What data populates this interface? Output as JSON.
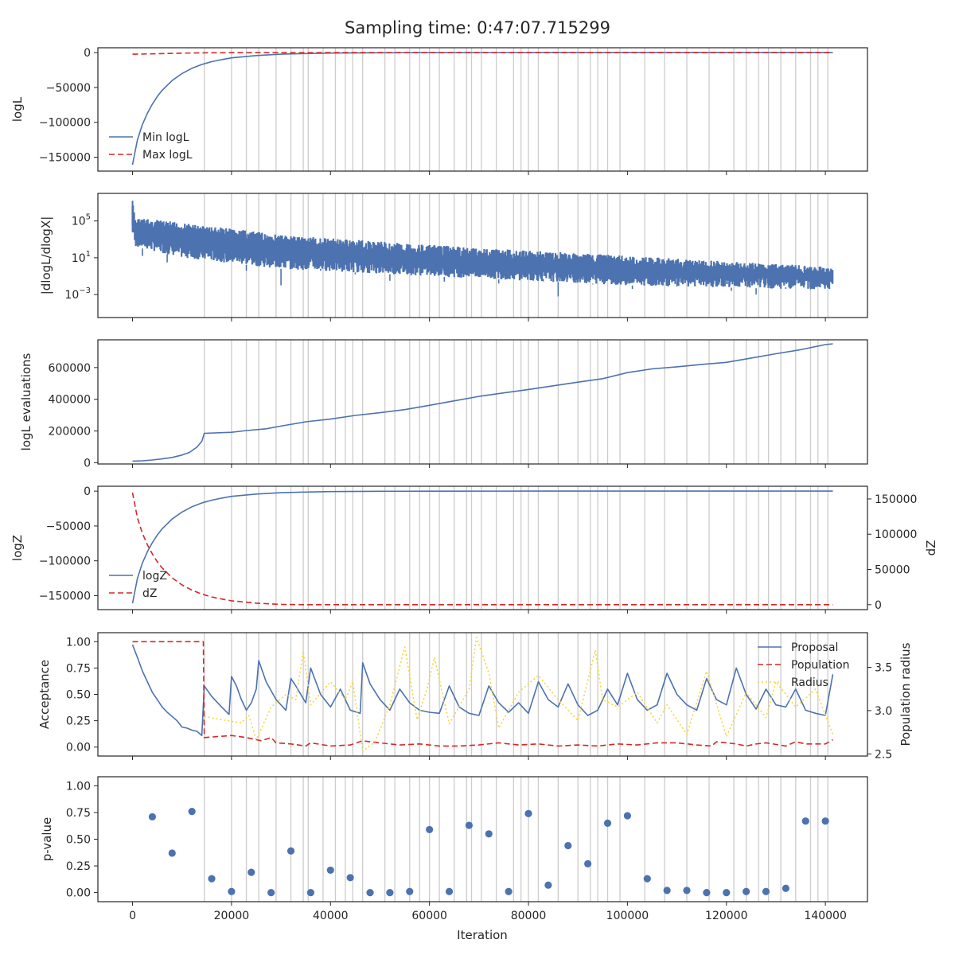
{
  "figure": {
    "title": "Sampling time: 0:47:07.715299",
    "xlabel": "Iteration"
  },
  "colors": {
    "blue": "#4c72b0",
    "red": "#d62728",
    "yellow": "#f5d63a",
    "grid": "#cccccc",
    "axis": "#262626"
  },
  "chart_data": [
    {
      "type": "line",
      "id": "logl",
      "ylabel": "logL",
      "xlim": [
        -7000,
        148500
      ],
      "ylim": [
        -170000,
        7000
      ],
      "yticks": [
        0,
        -50000,
        -100000,
        -150000
      ],
      "ytick_labels": [
        "0",
        "−50000",
        "−100000",
        "−150000"
      ],
      "legend_position": "lower-left",
      "series": [
        {
          "name": "Min logL",
          "style": "solid",
          "color": "#4c72b0",
          "x": [
            0,
            1000,
            2000,
            3000,
            4000,
            5000,
            6000,
            8000,
            10000,
            12000,
            14000,
            16000,
            18000,
            20000,
            25000,
            30000,
            35000,
            40000,
            50000,
            60000,
            80000,
            100000,
            141500
          ],
          "y": [
            -161000,
            -125000,
            -103000,
            -87000,
            -74000,
            -63000,
            -54000,
            -40000,
            -30000,
            -22500,
            -17000,
            -13000,
            -10000,
            -7500,
            -4200,
            -2300,
            -1300,
            -700,
            -220,
            -70,
            -10,
            -2,
            0
          ]
        },
        {
          "name": "Max logL",
          "style": "dashed",
          "color": "#d62728",
          "x": [
            0,
            5000,
            10000,
            14000,
            20000,
            40000,
            80000,
            141500
          ],
          "y": [
            -2200,
            -1600,
            -800,
            -300,
            -100,
            0,
            0,
            0
          ]
        }
      ]
    },
    {
      "type": "line",
      "id": "dlogl",
      "ylabel": "|dlogL/dlogX|",
      "yscale": "log",
      "xlim": [
        -7000,
        148500
      ],
      "ylim_log10": [
        -5.5,
        8.0
      ],
      "yticks_log10": [
        5,
        1,
        -3
      ],
      "ytick_labels": [
        {
          "base": "10",
          "exp": "5"
        },
        {
          "base": "10",
          "exp": "1"
        },
        {
          "base": "10",
          "exp": "−3"
        }
      ],
      "series": [
        {
          "name": "",
          "style": "noisy-band",
          "color": "#4c72b0",
          "x": [
            0,
            500,
            10000,
            30000,
            60000,
            100000,
            141500
          ],
          "upper_log10": [
            7.2,
            5.4,
            4.8,
            3.5,
            2.4,
            1.2,
            0.0
          ],
          "lower_log10": [
            3.8,
            2.2,
            1.0,
            -0.2,
            -1.0,
            -2.0,
            -2.5
          ],
          "dips": [
            [
              2000,
              1.2
            ],
            [
              7000,
              0.5
            ],
            [
              15000,
              0.7
            ],
            [
              23000,
              -0.4
            ],
            [
              30000,
              -2.0
            ],
            [
              38000,
              -0.2
            ],
            [
              45000,
              -0.8
            ],
            [
              52000,
              -1.5
            ],
            [
              63000,
              -1.6
            ],
            [
              68000,
              -1.2
            ],
            [
              74000,
              -1.8
            ],
            [
              83000,
              -1.3
            ],
            [
              86000,
              -3.2
            ],
            [
              93000,
              -1.9
            ],
            [
              101000,
              -2.4
            ],
            [
              110000,
              -1.7
            ],
            [
              121000,
              -2.6
            ],
            [
              126000,
              -3.0
            ],
            [
              132000,
              -2.2
            ],
            [
              137000,
              -2.3
            ]
          ]
        }
      ]
    },
    {
      "type": "line",
      "id": "evals",
      "ylabel": "logL evaluations",
      "xlim": [
        -7000,
        148500
      ],
      "ylim": [
        -8000,
        775000
      ],
      "yticks": [
        0,
        200000,
        400000,
        600000
      ],
      "ytick_labels": [
        "0",
        "200000",
        "400000",
        "600000"
      ],
      "series": [
        {
          "name": "",
          "style": "solid",
          "color": "#4c72b0",
          "x": [
            0,
            2000,
            4000,
            6000,
            8000,
            10000,
            11500,
            13000,
            14000,
            14500,
            20000,
            23000,
            27000,
            30000,
            35000,
            40000,
            45000,
            50000,
            55000,
            60000,
            65000,
            70000,
            75000,
            80000,
            85000,
            90000,
            95000,
            100000,
            105000,
            110000,
            115000,
            120000,
            125000,
            130000,
            135000,
            140000,
            141500
          ],
          "y": [
            10000,
            12000,
            17000,
            24000,
            33000,
            48000,
            65000,
            98000,
            135000,
            185000,
            192000,
            203000,
            214000,
            231000,
            258000,
            275000,
            298000,
            315000,
            335000,
            362000,
            390000,
            418000,
            440000,
            462000,
            485000,
            508000,
            530000,
            568000,
            592000,
            605000,
            620000,
            633000,
            660000,
            687000,
            713000,
            745000,
            750000
          ]
        }
      ]
    },
    {
      "type": "line",
      "id": "logz",
      "ylabel": "logZ",
      "ylabel_right": "dZ",
      "xlim": [
        -7000,
        148500
      ],
      "ylim": [
        -170000,
        7000
      ],
      "ylim_right": [
        -7000,
        168000
      ],
      "yticks": [
        0,
        -50000,
        -100000,
        -150000
      ],
      "ytick_labels": [
        "0",
        "−50000",
        "−100000",
        "−150000"
      ],
      "yticks_right": [
        0,
        50000,
        100000,
        150000
      ],
      "ytick_labels_right": [
        "0",
        "50000",
        "100000",
        "150000"
      ],
      "legend_position": "lower-left",
      "series": [
        {
          "name": "logZ",
          "style": "solid",
          "color": "#4c72b0",
          "axis": "left",
          "x": [
            0,
            1000,
            2000,
            3000,
            4000,
            5000,
            6000,
            8000,
            10000,
            12000,
            14000,
            16000,
            18000,
            20000,
            25000,
            30000,
            35000,
            40000,
            50000,
            60000,
            80000,
            100000,
            141500
          ],
          "y": [
            -161000,
            -125000,
            -103000,
            -87000,
            -74000,
            -63000,
            -54000,
            -40000,
            -30000,
            -22500,
            -17000,
            -13000,
            -10000,
            -7500,
            -4200,
            -2300,
            -1300,
            -700,
            -220,
            -70,
            -10,
            -2,
            0
          ]
        },
        {
          "name": "dZ",
          "style": "dashed",
          "color": "#d62728",
          "axis": "right",
          "x": [
            0,
            1000,
            2000,
            3000,
            4000,
            5000,
            6000,
            8000,
            10000,
            12000,
            14000,
            16000,
            18000,
            20000,
            25000,
            30000,
            35000,
            40000,
            50000,
            60000,
            80000,
            100000,
            141500
          ],
          "y": [
            159000,
            123000,
            101000,
            85000,
            72000,
            61000,
            52000,
            38000,
            28000,
            20500,
            15000,
            11000,
            8000,
            5500,
            2200,
            300,
            0,
            0,
            0,
            0,
            0,
            0,
            0
          ]
        }
      ]
    },
    {
      "type": "line",
      "id": "acceptance",
      "ylabel": "Acceptance",
      "ylabel_right": "Population radius",
      "xlim": [
        -7000,
        148500
      ],
      "ylim": [
        -0.085,
        1.085
      ],
      "ylim_right": [
        2.475,
        3.9
      ],
      "yticks": [
        0,
        0.25,
        0.5,
        0.75,
        1.0
      ],
      "ytick_labels": [
        "0.00",
        "0.25",
        "0.50",
        "0.75",
        "1.00"
      ],
      "yticks_right": [
        2.5,
        3.0,
        3.5
      ],
      "ytick_labels_right": [
        "2.5",
        "3.0",
        "3.5"
      ],
      "legend_position": "upper-right",
      "series": [
        {
          "name": "Proposal",
          "style": "solid",
          "color": "#4c72b0",
          "axis": "left",
          "x": [
            0,
            1000,
            2000,
            3000,
            4000,
            5000,
            6000,
            7000,
            8000,
            9000,
            10000,
            11000,
            12000,
            13000,
            14000,
            14500,
            16000,
            18000,
            19500,
            20000,
            21000,
            22000,
            23000,
            24000,
            25000,
            25500,
            27000,
            29000,
            31000,
            32000,
            33000,
            35000,
            36000,
            38000,
            40000,
            42000,
            44000,
            46000,
            46500,
            48000,
            50000,
            52000,
            54000,
            56000,
            58000,
            60000,
            62000,
            64000,
            66000,
            68000,
            70000,
            72000,
            74000,
            76000,
            78000,
            80000,
            82000,
            84000,
            86000,
            88000,
            90000,
            92000,
            94000,
            96000,
            98000,
            100000,
            102000,
            104000,
            106000,
            108000,
            110000,
            112000,
            114000,
            116000,
            118000,
            120000,
            122000,
            124000,
            126000,
            128000,
            130000,
            132000,
            134000,
            136000,
            138000,
            140000,
            141500
          ],
          "y": [
            0.97,
            0.85,
            0.72,
            0.62,
            0.52,
            0.45,
            0.38,
            0.33,
            0.29,
            0.25,
            0.19,
            0.18,
            0.16,
            0.15,
            0.11,
            0.58,
            0.48,
            0.38,
            0.31,
            0.67,
            0.58,
            0.45,
            0.35,
            0.42,
            0.55,
            0.82,
            0.62,
            0.45,
            0.35,
            0.65,
            0.58,
            0.42,
            0.75,
            0.5,
            0.38,
            0.55,
            0.35,
            0.32,
            0.8,
            0.6,
            0.45,
            0.35,
            0.55,
            0.42,
            0.35,
            0.33,
            0.32,
            0.58,
            0.38,
            0.32,
            0.3,
            0.58,
            0.42,
            0.33,
            0.42,
            0.32,
            0.62,
            0.45,
            0.38,
            0.6,
            0.4,
            0.3,
            0.35,
            0.55,
            0.4,
            0.7,
            0.45,
            0.35,
            0.4,
            0.7,
            0.5,
            0.4,
            0.35,
            0.65,
            0.45,
            0.4,
            0.75,
            0.5,
            0.36,
            0.55,
            0.4,
            0.38,
            0.55,
            0.35,
            0.32,
            0.3,
            0.69
          ]
        },
        {
          "name": "Population",
          "style": "dashed",
          "color": "#d62728",
          "axis": "left",
          "x": [
            0,
            14300,
            14500,
            20000,
            23000,
            26000,
            28000,
            29000,
            32000,
            35000,
            36000,
            40000,
            44000,
            46500,
            48000,
            52000,
            54000,
            58000,
            62000,
            66000,
            70000,
            74000,
            78000,
            82000,
            86000,
            90000,
            94000,
            98000,
            102000,
            106000,
            110000,
            114000,
            117000,
            118000,
            122000,
            124000,
            126000,
            128000,
            132000,
            134000,
            136000,
            140000,
            141500
          ],
          "y": [
            1.0,
            1.0,
            0.09,
            0.11,
            0.09,
            0.06,
            0.09,
            0.04,
            0.03,
            0.01,
            0.04,
            0.01,
            0.02,
            0.06,
            0.05,
            0.03,
            0.02,
            0.03,
            0.01,
            0.01,
            0.02,
            0.04,
            0.02,
            0.03,
            0.01,
            0.02,
            0.01,
            0.03,
            0.02,
            0.04,
            0.04,
            0.02,
            0.01,
            0.05,
            0.03,
            0.01,
            0.03,
            0.04,
            0.01,
            0.05,
            0.03,
            0.03,
            0.07
          ]
        },
        {
          "name": "Radius",
          "style": "dotted",
          "color": "#f5d63a",
          "axis": "left",
          "x": [
            14500,
            18000,
            22000,
            23500,
            25000,
            28000,
            31000,
            33000,
            34500,
            36000,
            40000,
            43000,
            44500,
            46500,
            49000,
            52000,
            55000,
            57500,
            59500,
            61000,
            64000,
            68000,
            69500,
            72000,
            74000,
            78000,
            82000,
            86000,
            90000,
            93500,
            95000,
            98000,
            102000,
            106000,
            108000,
            112000,
            116000,
            120000,
            124000,
            128000,
            130000,
            134000,
            138000,
            141500
          ],
          "y": [
            0.29,
            0.26,
            0.23,
            0.3,
            0.07,
            0.38,
            0.5,
            0.45,
            0.91,
            0.4,
            0.62,
            0.45,
            0.62,
            -0.04,
            0.05,
            0.4,
            0.95,
            0.26,
            0.55,
            0.85,
            0.22,
            0.55,
            1.04,
            0.7,
            0.18,
            0.52,
            0.68,
            0.45,
            0.25,
            0.92,
            0.45,
            0.38,
            0.52,
            0.23,
            0.4,
            0.12,
            0.72,
            0.1,
            0.52,
            0.28,
            0.62,
            0.38,
            0.55,
            0.12
          ]
        }
      ]
    },
    {
      "type": "scatter",
      "id": "pvalue",
      "ylabel": "p-value",
      "xlim": [
        -7000,
        148500
      ],
      "ylim": [
        -0.085,
        1.085
      ],
      "yticks": [
        0,
        0.25,
        0.5,
        0.75,
        1.0
      ],
      "ytick_labels": [
        "0.00",
        "0.25",
        "0.50",
        "0.75",
        "1.00"
      ],
      "xticks": [
        0,
        20000,
        40000,
        60000,
        80000,
        100000,
        120000,
        140000
      ],
      "xtick_labels": [
        "0",
        "20000",
        "40000",
        "60000",
        "80000",
        "100000",
        "120000",
        "140000"
      ],
      "series": [
        {
          "name": "",
          "color": "#4c72b0",
          "x": [
            4000,
            8000,
            12000,
            16000,
            20000,
            24000,
            28000,
            32000,
            36000,
            40000,
            44000,
            48000,
            52000,
            56000,
            60000,
            64000,
            68000,
            72000,
            76000,
            80000,
            84000,
            88000,
            92000,
            96000,
            100000,
            104000,
            108000,
            112000,
            116000,
            120000,
            124000,
            128000,
            132000,
            136000,
            140000
          ],
          "y": [
            0.71,
            0.37,
            0.76,
            0.13,
            0.01,
            0.19,
            0.0,
            0.39,
            0.0,
            0.21,
            0.14,
            0.0,
            0.0,
            0.01,
            0.59,
            0.01,
            0.63,
            0.55,
            0.01,
            0.74,
            0.07,
            0.44,
            0.27,
            0.65,
            0.72,
            0.13,
            0.02,
            0.02,
            0.0,
            0.0,
            0.01,
            0.01,
            0.04,
            0.67,
            0.67
          ]
        }
      ]
    }
  ],
  "vlines_x": [
    14500,
    20000,
    23000,
    25500,
    29000,
    32000,
    34500,
    35500,
    38500,
    41000,
    43000,
    44500,
    46500,
    51000,
    53000,
    56000,
    58000,
    60000,
    62000,
    65000,
    67500,
    68500,
    70500,
    73500,
    77000,
    78500,
    80000,
    82000,
    86000,
    90000,
    92500,
    94000,
    96000,
    98500,
    103500,
    107500,
    112000,
    116500,
    121500,
    124000,
    126500,
    128500,
    131000,
    134000,
    137000,
    138500,
    140500
  ]
}
